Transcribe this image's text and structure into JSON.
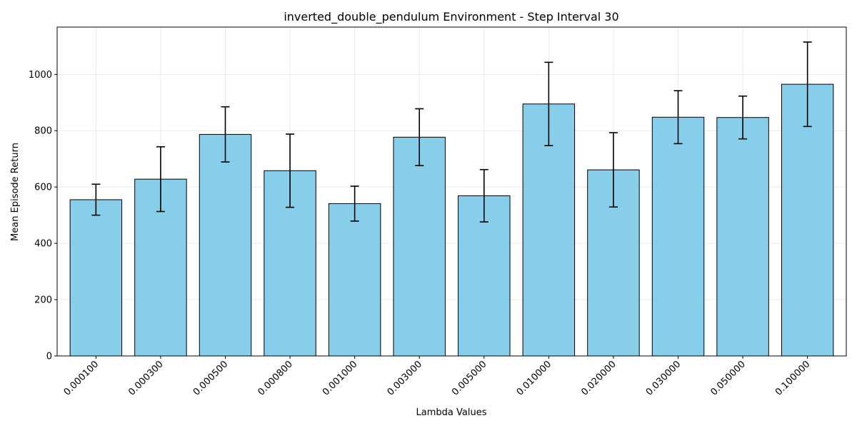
{
  "chart_data": {
    "type": "bar",
    "title": "inverted_double_pendulum Environment - Step Interval 30",
    "xlabel": "Lambda Values",
    "ylabel": "Mean Episode Return",
    "categories": [
      "0.000100",
      "0.000300",
      "0.000500",
      "0.000800",
      "0.001000",
      "0.003000",
      "0.005000",
      "0.010000",
      "0.020000",
      "0.030000",
      "0.050000",
      "0.100000"
    ],
    "values": [
      555,
      628,
      787,
      658,
      541,
      777,
      569,
      895,
      661,
      848,
      847,
      965
    ],
    "errors": [
      55,
      115,
      98,
      130,
      62,
      101,
      93,
      148,
      132,
      94,
      76,
      150
    ],
    "ylim": [
      0,
      1168
    ],
    "yticks": [
      0,
      200,
      400,
      600,
      800,
      1000
    ],
    "grid": true,
    "bar_color": "#87CEEB",
    "edge_color": "#000000"
  }
}
